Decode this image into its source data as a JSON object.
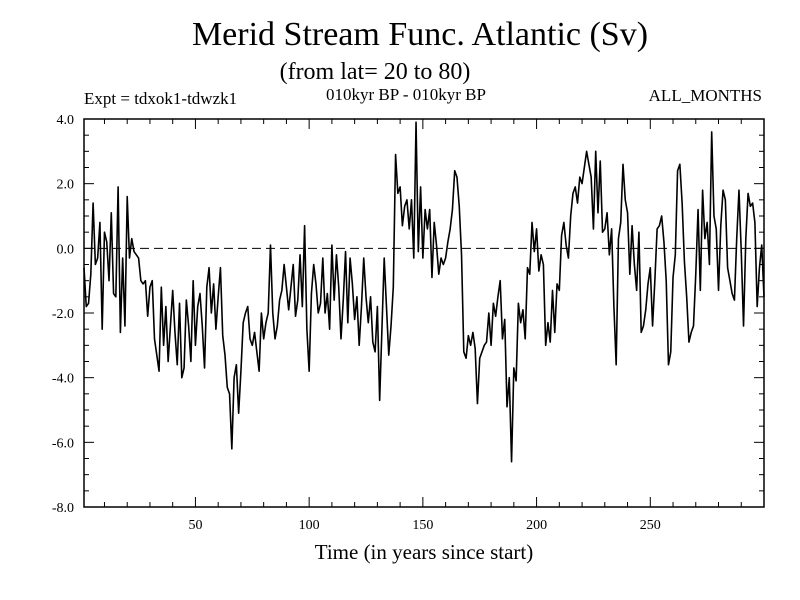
{
  "chart_data": {
    "type": "line",
    "title": "Merid Stream Func. Atlantic (Sv)",
    "subtitle": "(from lat= 20 to 80)",
    "expt_label": "Expt = tdxok1-tdwzk1",
    "period_label": "010kyr BP - 010kyr BP",
    "months_label": "ALL_MONTHS",
    "xlabel": "Time (in years since start)",
    "ylabel": "",
    "xlim": [
      1,
      300
    ],
    "ylim": [
      -8.0,
      4.0
    ],
    "xticks": [
      50,
      100,
      150,
      200,
      250
    ],
    "xtick_labels": [
      "50",
      "100",
      "150",
      "200",
      "250"
    ],
    "yticks": [
      -8.0,
      -6.0,
      -4.0,
      -2.0,
      0.0,
      2.0,
      4.0
    ],
    "ytick_labels": [
      "-8.0",
      "-6.0",
      "-4.0",
      "-2.0",
      "0.0",
      "2.0",
      "4.0"
    ],
    "reference_line": {
      "y": 0.0,
      "style": "dashed"
    },
    "series": [
      {
        "name": "Merid Stream Func. Atlantic",
        "x": [
          1,
          2,
          3,
          4,
          5,
          6,
          7,
          8,
          9,
          10,
          11,
          12,
          13,
          14,
          15,
          16,
          17,
          18,
          19,
          20,
          21,
          22,
          23,
          24,
          25,
          26,
          27,
          28,
          29,
          30,
          31,
          32,
          33,
          34,
          35,
          36,
          37,
          38,
          39,
          40,
          41,
          42,
          43,
          44,
          45,
          46,
          47,
          48,
          49,
          50,
          51,
          52,
          53,
          54,
          55,
          56,
          57,
          58,
          59,
          60,
          61,
          62,
          63,
          64,
          65,
          66,
          67,
          68,
          69,
          70,
          71,
          72,
          73,
          74,
          75,
          76,
          77,
          78,
          79,
          80,
          81,
          82,
          83,
          84,
          85,
          86,
          87,
          88,
          89,
          90,
          91,
          92,
          93,
          94,
          95,
          96,
          97,
          98,
          99,
          100,
          101,
          102,
          103,
          104,
          105,
          106,
          107,
          108,
          109,
          110,
          111,
          112,
          113,
          114,
          115,
          116,
          117,
          118,
          119,
          120,
          121,
          122,
          123,
          124,
          125,
          126,
          127,
          128,
          129,
          130,
          131,
          132,
          133,
          134,
          135,
          136,
          137,
          138,
          139,
          140,
          141,
          142,
          143,
          144,
          145,
          146,
          147,
          148,
          149,
          150,
          151,
          152,
          153,
          154,
          155,
          156,
          157,
          158,
          159,
          160,
          161,
          162,
          163,
          164,
          165,
          166,
          167,
          168,
          169,
          170,
          171,
          172,
          173,
          174,
          175,
          176,
          177,
          178,
          179,
          180,
          181,
          182,
          183,
          184,
          185,
          186,
          187,
          188,
          189,
          190,
          191,
          192,
          193,
          194,
          195,
          196,
          197,
          198,
          199,
          200,
          201,
          202,
          203,
          204,
          205,
          206,
          207,
          208,
          209,
          210,
          211,
          212,
          213,
          214,
          215,
          216,
          217,
          218,
          219,
          220,
          221,
          222,
          223,
          224,
          225,
          226,
          227,
          228,
          229,
          230,
          231,
          232,
          233,
          234,
          235,
          236,
          237,
          238,
          239,
          240,
          241,
          242,
          243,
          244,
          245,
          246,
          247,
          248,
          249,
          250,
          251,
          252,
          253,
          254,
          255,
          256,
          257,
          258,
          259,
          260,
          261,
          262,
          263,
          264,
          265,
          266,
          267,
          268,
          269,
          270,
          271,
          272,
          273,
          274,
          275,
          276,
          277,
          278,
          279,
          280,
          281,
          282,
          283,
          284,
          285,
          286,
          287,
          288,
          289,
          290,
          291,
          292,
          293,
          294,
          295,
          296,
          297,
          298,
          299,
          300
        ],
        "values": [
          -0.6,
          -1.8,
          -1.7,
          -0.8,
          1.4,
          -0.5,
          -0.3,
          0.8,
          -2.5,
          0.5,
          0.2,
          -1.0,
          1.1,
          -1.4,
          -1.5,
          1.9,
          -2.6,
          -0.3,
          -2.4,
          1.6,
          -0.3,
          0.3,
          -0.1,
          -0.2,
          -0.3,
          -1.0,
          -1.1,
          -1.0,
          -2.1,
          -1.2,
          -1.0,
          -2.8,
          -3.3,
          -3.8,
          -1.2,
          -3.0,
          -1.8,
          -3.5,
          -2.4,
          -1.3,
          -2.6,
          -3.6,
          -1.7,
          -4.0,
          -3.7,
          -1.6,
          -2.4,
          -3.5,
          -1.0,
          -3.0,
          -1.8,
          -1.4,
          -2.4,
          -3.7,
          -1.2,
          -0.6,
          -2.0,
          -1.1,
          -2.5,
          -1.5,
          -0.6,
          -2.7,
          -3.3,
          -4.3,
          -4.5,
          -6.2,
          -4.0,
          -3.6,
          -5.1,
          -3.8,
          -2.3,
          -2.0,
          -1.8,
          -2.8,
          -3.0,
          -2.6,
          -3.2,
          -3.8,
          -2.0,
          -2.8,
          -2.3,
          -2.0,
          0.1,
          -2.0,
          -2.8,
          -2.4,
          -1.6,
          -1.3,
          -0.5,
          -1.2,
          -1.9,
          -1.2,
          -0.5,
          -2.1,
          -1.6,
          -0.2,
          -1.8,
          0.7,
          -2.5,
          -3.8,
          -1.4,
          -0.5,
          -1.1,
          -2.0,
          -1.7,
          -0.3,
          -2.0,
          -1.4,
          -2.5,
          0.1,
          -1.6,
          -0.2,
          -1.2,
          -2.8,
          -1.6,
          -0.1,
          -2.3,
          -0.3,
          -1.1,
          -2.2,
          -1.5,
          -3.0,
          -1.8,
          -0.3,
          -1.5,
          -2.3,
          -1.5,
          -2.9,
          -3.2,
          -1.8,
          -4.7,
          -2.5,
          -0.3,
          -1.8,
          -3.3,
          -2.4,
          -1.2,
          2.9,
          1.7,
          1.9,
          0.7,
          1.3,
          1.5,
          0.6,
          1.5,
          -0.3,
          3.9,
          -0.1,
          1.9,
          -0.3,
          1.2,
          0.6,
          1.2,
          -0.9,
          0.8,
          0.1,
          -0.8,
          -0.3,
          -0.5,
          -0.3,
          0.2,
          0.6,
          1.2,
          2.4,
          2.2,
          1.3,
          -0.2,
          -3.2,
          -3.4,
          -2.7,
          -3.0,
          -2.6,
          -3.1,
          -4.8,
          -3.4,
          -3.2,
          -3.0,
          -2.9,
          -2.0,
          -3.0,
          -1.7,
          -2.1,
          -1.5,
          -1.0,
          -2.8,
          -2.2,
          -4.9,
          -4.0,
          -6.6,
          -3.7,
          -4.1,
          -1.7,
          -2.3,
          -1.9,
          -2.8,
          -0.6,
          -0.8,
          0.8,
          -0.1,
          0.6,
          -0.7,
          -0.2,
          -0.5,
          -3.0,
          -2.3,
          -2.9,
          -1.3,
          -2.6,
          -1.1,
          -1.3,
          0.4,
          0.8,
          0.1,
          -0.3,
          1.0,
          1.7,
          1.9,
          1.4,
          2.2,
          2.0,
          2.5,
          3.0,
          2.6,
          2.2,
          0.6,
          3.0,
          1.1,
          2.7,
          0.5,
          0.6,
          1.1,
          -0.2,
          0.6,
          -1.8,
          -3.6,
          0.3,
          0.8,
          2.6,
          1.5,
          1.1,
          -0.8,
          0.7,
          -0.5,
          -1.3,
          0.5,
          -2.6,
          -2.4,
          -1.9,
          -1.1,
          -0.6,
          -2.4,
          -1.0,
          0.6,
          0.7,
          1.0,
          0.2,
          -1.0,
          -3.6,
          -3.2,
          -0.9,
          -0.2,
          2.4,
          2.6,
          1.4,
          -0.4,
          -1.5,
          -2.9,
          -2.6,
          -2.4,
          -0.8,
          1.2,
          -1.3,
          1.8,
          0.3,
          0.8,
          -0.5,
          3.6,
          1.0,
          0.6,
          -1.3,
          0.7,
          1.8,
          1.5,
          -0.6,
          -1.0,
          -1.4,
          -1.6,
          0.3,
          1.8,
          -0.1,
          -2.4,
          0.3,
          1.7,
          1.3,
          1.4,
          0.8,
          -1.8,
          -0.6,
          0.1,
          -1.5
        ]
      }
    ]
  }
}
